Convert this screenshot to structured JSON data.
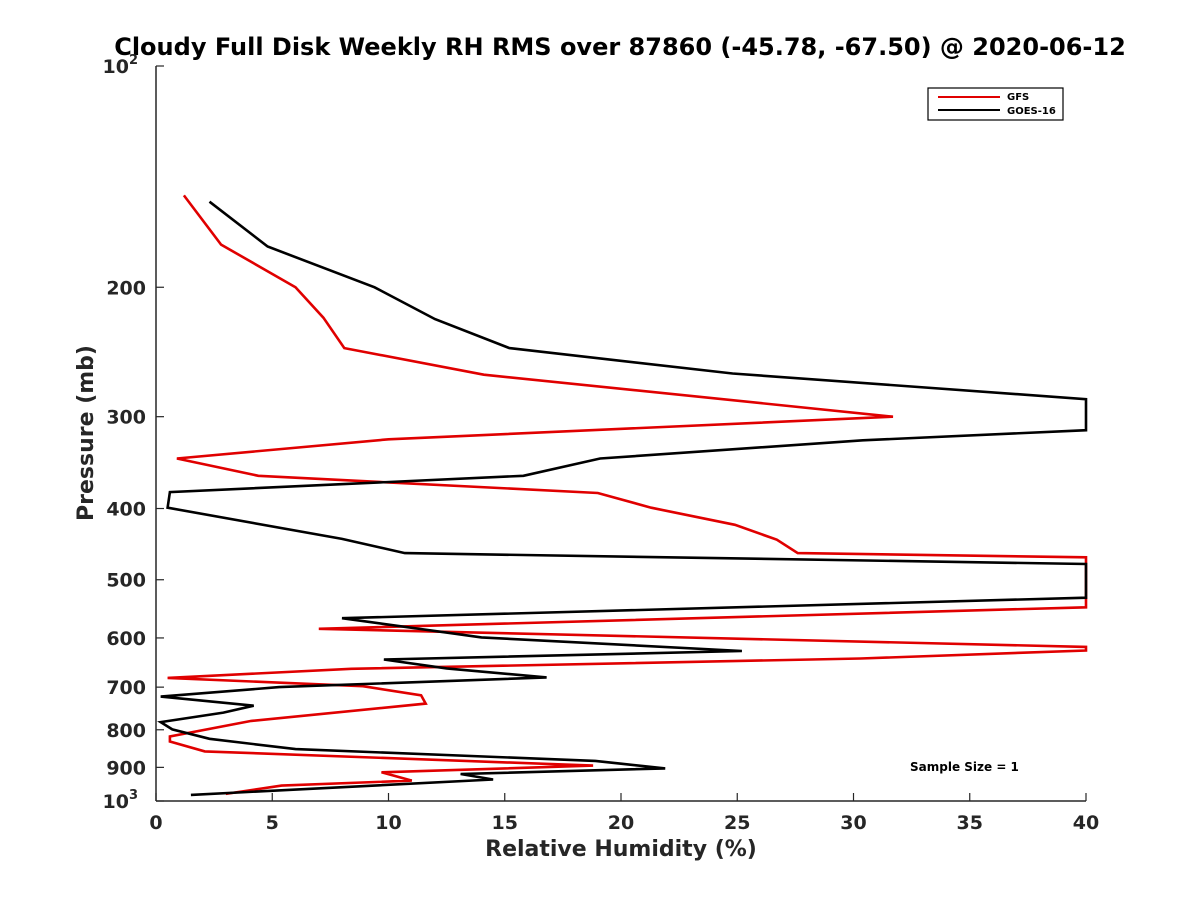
{
  "chart_data": {
    "type": "line",
    "title": "Cloudy Full Disk Weekly RH RMS over 87860 (-45.78, -67.50) @ 2020-06-12",
    "xlabel": "Relative Humidity (%)",
    "ylabel": "Pressure (mb)",
    "xlim": [
      0,
      40
    ],
    "ylim": [
      100,
      1000
    ],
    "y_scale": "log",
    "y_reversed": true,
    "grid": false,
    "legend_position": "top-right",
    "xticks": [
      "0",
      "5",
      "10",
      "15",
      "20",
      "25",
      "30",
      "35",
      "40"
    ],
    "yticks": [
      {
        "value": 100,
        "base": "10",
        "exp": "2"
      },
      {
        "value": 200,
        "label": "200"
      },
      {
        "value": 300,
        "label": "300"
      },
      {
        "value": 400,
        "label": "400"
      },
      {
        "value": 500,
        "label": "500"
      },
      {
        "value": 600,
        "label": "600"
      },
      {
        "value": 700,
        "label": "700"
      },
      {
        "value": 800,
        "label": "800"
      },
      {
        "value": 900,
        "label": "900"
      },
      {
        "value": 1000,
        "base": "10",
        "exp": "3"
      }
    ],
    "annotation": "Sample Size = 1",
    "series": [
      {
        "name": "GFS",
        "color": "#e00000",
        "points": [
          [
            1.2,
            150
          ],
          [
            2.8,
            175
          ],
          [
            6.0,
            200
          ],
          [
            7.2,
            220
          ],
          [
            8.1,
            242
          ],
          [
            14.1,
            263
          ],
          [
            31.7,
            300
          ],
          [
            10.0,
            322
          ],
          [
            0.9,
            342
          ],
          [
            4.4,
            361
          ],
          [
            19.0,
            381
          ],
          [
            21.3,
            399
          ],
          [
            24.9,
            421
          ],
          [
            26.7,
            441
          ],
          [
            27.6,
            460
          ],
          [
            40.0,
            466
          ],
          [
            40.0,
            545
          ],
          [
            7.0,
            583
          ],
          [
            40.0,
            617
          ],
          [
            40.0,
            624
          ],
          [
            30.3,
            640
          ],
          [
            8.4,
            661
          ],
          [
            0.5,
            680
          ],
          [
            8.9,
            698
          ],
          [
            11.4,
            718
          ],
          [
            11.6,
            737
          ],
          [
            4.1,
            778
          ],
          [
            0.6,
            817
          ],
          [
            0.6,
            830
          ],
          [
            2.1,
            856
          ],
          [
            18.8,
            895
          ],
          [
            9.7,
            914
          ],
          [
            11.0,
            938
          ],
          [
            5.4,
            953
          ],
          [
            3.0,
            978
          ]
        ]
      },
      {
        "name": "GOES-16",
        "color": "#000000",
        "points": [
          [
            2.3,
            153
          ],
          [
            4.8,
            176
          ],
          [
            9.4,
            200
          ],
          [
            12.0,
            221
          ],
          [
            15.2,
            242
          ],
          [
            24.8,
            262
          ],
          [
            40.0,
            284
          ],
          [
            40.0,
            313
          ],
          [
            30.4,
            323
          ],
          [
            19.1,
            342
          ],
          [
            15.8,
            361
          ],
          [
            0.6,
            380
          ],
          [
            0.5,
            399
          ],
          [
            8.0,
            440
          ],
          [
            10.7,
            460
          ],
          [
            40.0,
            476
          ],
          [
            40.0,
            529
          ],
          [
            8.0,
            564
          ],
          [
            14.0,
            599
          ],
          [
            25.2,
            625
          ],
          [
            9.8,
            642
          ],
          [
            12.5,
            660
          ],
          [
            16.8,
            679
          ],
          [
            5.3,
            700
          ],
          [
            0.2,
            721
          ],
          [
            4.2,
            742
          ],
          [
            2.9,
            758
          ],
          [
            0.2,
            781
          ],
          [
            0.7,
            799
          ],
          [
            2.3,
            823
          ],
          [
            6.0,
            850
          ],
          [
            18.9,
            882
          ],
          [
            21.9,
            903
          ],
          [
            13.1,
            919
          ],
          [
            14.5,
            935
          ],
          [
            1.5,
            981
          ]
        ]
      }
    ]
  }
}
